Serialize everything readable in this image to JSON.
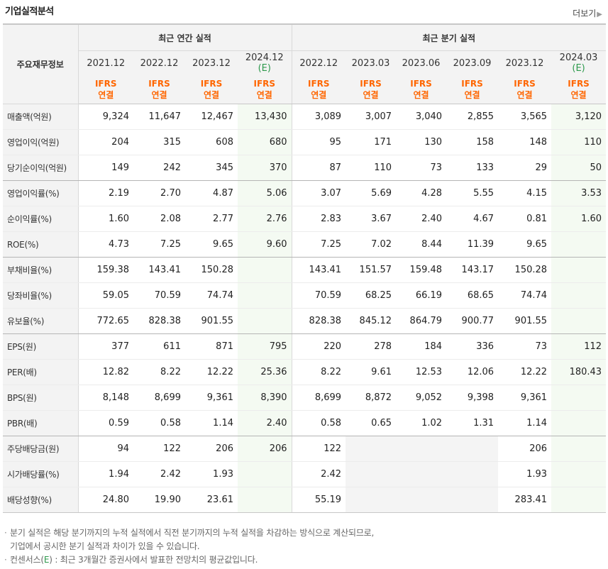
{
  "title": "기업실적분석",
  "more_label": "더보기",
  "more_arrow": "▶",
  "row_header_label": "주요재무정보",
  "groups": {
    "annual": "최근 연간 실적",
    "quarterly": "최근 분기 실적"
  },
  "periods": [
    {
      "date": "2021.12",
      "std": "IFRS",
      "basis": "연결"
    },
    {
      "date": "2022.12",
      "std": "IFRS",
      "basis": "연결"
    },
    {
      "date": "2023.12",
      "std": "IFRS",
      "basis": "연결"
    },
    {
      "date": "2024.12",
      "est": "(E)",
      "std": "IFRS",
      "basis": "연결"
    },
    {
      "date": "2022.12",
      "std": "IFRS",
      "basis": "연결"
    },
    {
      "date": "2023.03",
      "std": "IFRS",
      "basis": "연결"
    },
    {
      "date": "2023.06",
      "std": "IFRS",
      "basis": "연결"
    },
    {
      "date": "2023.09",
      "std": "IFRS",
      "basis": "연결"
    },
    {
      "date": "2023.12",
      "std": "IFRS",
      "basis": "연결"
    },
    {
      "date": "2024.03",
      "est": "(E)",
      "std": "IFRS",
      "basis": "연결"
    }
  ],
  "rows": [
    {
      "label": "매출액(억원)",
      "values": [
        "9,324",
        "11,647",
        "12,467",
        "13,430",
        "3,089",
        "3,007",
        "3,040",
        "2,855",
        "3,565",
        "3,120"
      ]
    },
    {
      "label": "영업이익(억원)",
      "values": [
        "204",
        "315",
        "608",
        "680",
        "95",
        "171",
        "130",
        "158",
        "148",
        "110"
      ]
    },
    {
      "label": "당기순이익(억원)",
      "values": [
        "149",
        "242",
        "345",
        "370",
        "87",
        "110",
        "73",
        "133",
        "29",
        "50"
      ]
    },
    {
      "label": "영업이익률(%)",
      "values": [
        "2.19",
        "2.70",
        "4.87",
        "5.06",
        "3.07",
        "5.69",
        "4.28",
        "5.55",
        "4.15",
        "3.53"
      ]
    },
    {
      "label": "순이익률(%)",
      "values": [
        "1.60",
        "2.08",
        "2.77",
        "2.76",
        "2.83",
        "3.67",
        "2.40",
        "4.67",
        "0.81",
        "1.60"
      ]
    },
    {
      "label": "ROE(%)",
      "values": [
        "4.73",
        "7.25",
        "9.65",
        "9.60",
        "7.25",
        "7.02",
        "8.44",
        "11.39",
        "9.65",
        ""
      ]
    },
    {
      "label": "부채비율(%)",
      "values": [
        "159.38",
        "143.41",
        "150.28",
        "",
        "143.41",
        "151.57",
        "159.48",
        "143.17",
        "150.28",
        ""
      ]
    },
    {
      "label": "당좌비율(%)",
      "values": [
        "59.05",
        "70.59",
        "74.74",
        "",
        "70.59",
        "68.25",
        "66.19",
        "68.65",
        "74.74",
        ""
      ]
    },
    {
      "label": "유보율(%)",
      "values": [
        "772.65",
        "828.38",
        "901.55",
        "",
        "828.38",
        "845.12",
        "864.79",
        "900.77",
        "901.55",
        ""
      ]
    },
    {
      "label": "EPS(원)",
      "values": [
        "377",
        "611",
        "871",
        "795",
        "220",
        "278",
        "184",
        "336",
        "73",
        "112"
      ]
    },
    {
      "label": "PER(배)",
      "values": [
        "12.82",
        "8.22",
        "12.22",
        "25.36",
        "8.22",
        "9.61",
        "12.53",
        "12.06",
        "12.22",
        "180.43"
      ]
    },
    {
      "label": "BPS(원)",
      "values": [
        "8,148",
        "8,699",
        "9,361",
        "8,390",
        "8,699",
        "8,872",
        "9,052",
        "9,398",
        "9,361",
        ""
      ]
    },
    {
      "label": "PBR(배)",
      "values": [
        "0.59",
        "0.58",
        "1.14",
        "2.40",
        "0.58",
        "0.65",
        "1.02",
        "1.31",
        "1.14",
        ""
      ]
    },
    {
      "label": "주당배당금(원)",
      "values": [
        "94",
        "122",
        "206",
        "206",
        "122",
        "",
        "",
        "",
        "206",
        ""
      ]
    },
    {
      "label": "시가배당률(%)",
      "values": [
        "1.94",
        "2.42",
        "1.93",
        "",
        "2.42",
        "",
        "",
        "",
        "1.93",
        ""
      ]
    },
    {
      "label": "배당성향(%)",
      "values": [
        "24.80",
        "19.90",
        "23.61",
        "",
        "55.19",
        "",
        "",
        "",
        "283.41",
        ""
      ]
    }
  ],
  "notes": {
    "bullet": "·",
    "line1": "분기 실적은 해당 분기까지의 누적 실적에서 직전 분기까지의 누적 실적을 차감하는 방식으로 계산되므로,",
    "line2": "기업에서 공시한 분기 실적과 차이가 있을 수 있습니다.",
    "line3_pre": "컨센서스(",
    "line3_e": "E",
    "line3_post": ") : 최근 3개월간 증권사에서 발표한 전망치의 평균값입니다."
  },
  "colors": {
    "ifrs": "#ff6600",
    "estimate": "#2e9a4d",
    "estimate_bg": "#f4faf2",
    "header_bg": "#f3f3f3"
  }
}
